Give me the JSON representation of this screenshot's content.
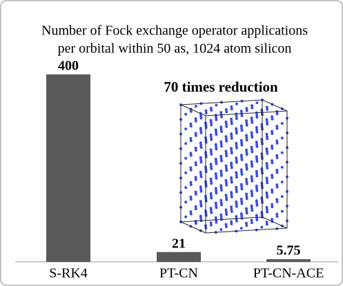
{
  "chart_data": {
    "type": "bar",
    "title": [
      "Number of Fock exchange operator applications",
      "per orbital within 50 as, 1024 atom silicon"
    ],
    "annotation": "70 times reduction",
    "categories": [
      "S-RK4",
      "PT-CN",
      "PT-CN-ACE"
    ],
    "values": [
      400,
      21,
      5.75
    ],
    "color": "#595959",
    "annotation_color": "#4f7a28"
  }
}
